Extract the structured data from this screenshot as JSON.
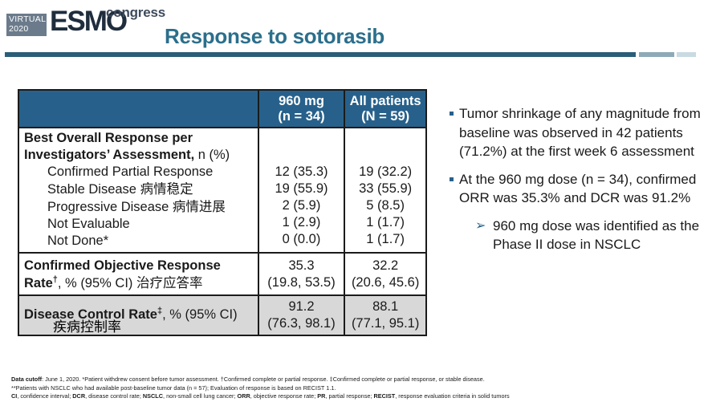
{
  "logo": {
    "virtual_line1": "VIRTUAL",
    "virtual_line2": "2020",
    "esmo_part1": "ES",
    "esmo_part2": "MO",
    "congress": "congress"
  },
  "title": "Response to sotorasib",
  "table": {
    "headers": {
      "col2_line1": "960 mg",
      "col2_line2": "(n = 34)",
      "col3_line1": "All patients",
      "col3_line2": "(N = 59)"
    },
    "bor": {
      "heading_line1": "Best Overall Response per",
      "heading_line2_bold": "Investigators’ Assessment,",
      "heading_line2_plain": " n (%)",
      "rows": [
        {
          "label": "Confirmed Partial Response",
          "zh": "",
          "col2": "12 (35.3)",
          "col3": "19 (32.2)"
        },
        {
          "label": "Stable Disease ",
          "zh": "病情稳定",
          "col2": "19 (55.9)",
          "col3": "33 (55.9)"
        },
        {
          "label": "Progressive Disease ",
          "zh": "病情进展",
          "col2": "2 (5.9)",
          "col3": "5 (8.5)"
        },
        {
          "label": "Not Evaluable",
          "zh": "",
          "col2": "1 (2.9)",
          "col3": "1 (1.7)"
        },
        {
          "label": "Not Done*",
          "zh": "",
          "col2": "0 (0.0)",
          "col3": "1 (1.7)"
        }
      ]
    },
    "orr": {
      "label_line1": "Confirmed Objective Response",
      "label_line2_bold": "Rate",
      "label_sup": "†",
      "label_line2_plain": ", % (95% CI) ",
      "zh": "治疗应答率",
      "col2_line1": "35.3",
      "col2_line2": "(19.8, 53.5)",
      "col3_line1": "32.2",
      "col3_line2": "(20.6, 45.6)"
    },
    "dcr": {
      "label_bold": "Disease Control Rate",
      "label_sup": "‡",
      "label_plain": ", % (95% CI)",
      "zh": "疾病控制率",
      "col2_line1": "91.2",
      "col2_line2": "(76.3, 98.1)",
      "col3_line1": "88.1",
      "col3_line2": "(77.1, 95.1)"
    }
  },
  "bullets": [
    "Tumor shrinkage of any magnitude from baseline was observed in 42 patients (71.2%) at the first week 6 assessment",
    "At the 960 mg dose (n = 34), confirmed ORR was 35.3% and DCR was 91.2%"
  ],
  "sub_bullet": "960 mg dose was identified as the Phase II dose in NSCLC",
  "footnotes": {
    "line1_bold": "Data cutoff",
    "line1_text": ": June 1, 2020. *Patient withdrew consent before tumor assessment. †Confirmed complete or partial response. ‡Confirmed complete or partial response, or stable disease.",
    "line2_text": "**Patients with NSCLC who had available post-baseline tumor data (n = 57); Evaluation of response is based on RECIST 1.1.",
    "line3": [
      {
        "b": "CI",
        "t": ", confidence interval; "
      },
      {
        "b": "DCR",
        "t": ", disease control rate; "
      },
      {
        "b": "NSCLC",
        "t": ", non-small cell lung cancer; "
      },
      {
        "b": "ORR",
        "t": ", objective response rate; "
      },
      {
        "b": "PR",
        "t": ", partial response; "
      },
      {
        "b": "RECIST",
        "t": ", response evaluation criteria in solid tumors"
      }
    ]
  },
  "colors": {
    "title": "#2b6f8c",
    "header_bg": "#27618b",
    "grey_row": "#d8d8d8",
    "rule": "#2b5e78"
  }
}
